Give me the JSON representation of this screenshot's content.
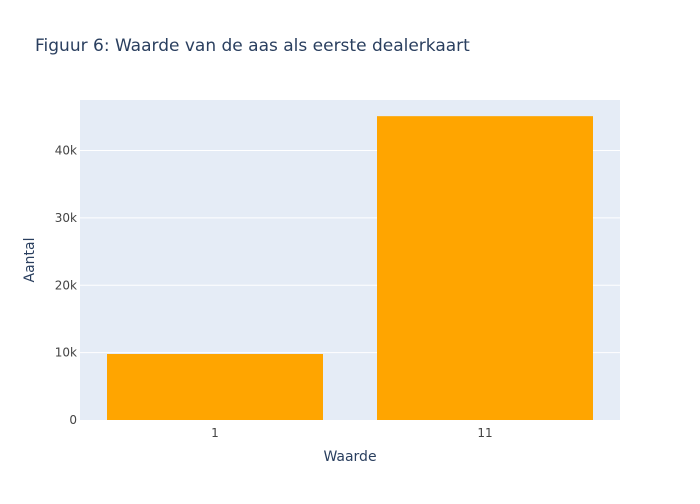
{
  "chart_data": {
    "type": "bar",
    "title": "Figuur 6: Waarde van de aas als eerste dealerkaart",
    "xlabel": "Waarde",
    "ylabel": "Aantal",
    "categories": [
      "1",
      "11"
    ],
    "values": [
      9800,
      45100
    ],
    "ylim": [
      0,
      47500
    ],
    "yticks": [
      0,
      10000,
      20000,
      30000,
      40000
    ],
    "ytick_labels": [
      "0",
      "10k",
      "20k",
      "30k",
      "40k"
    ],
    "grid": true,
    "legend": "none",
    "colors": {
      "bar": "#ffa500",
      "plot_background": "#e5ecf6",
      "grid": "#ffffff",
      "text": "#2a3f5f",
      "tick_text": "#444444"
    }
  }
}
